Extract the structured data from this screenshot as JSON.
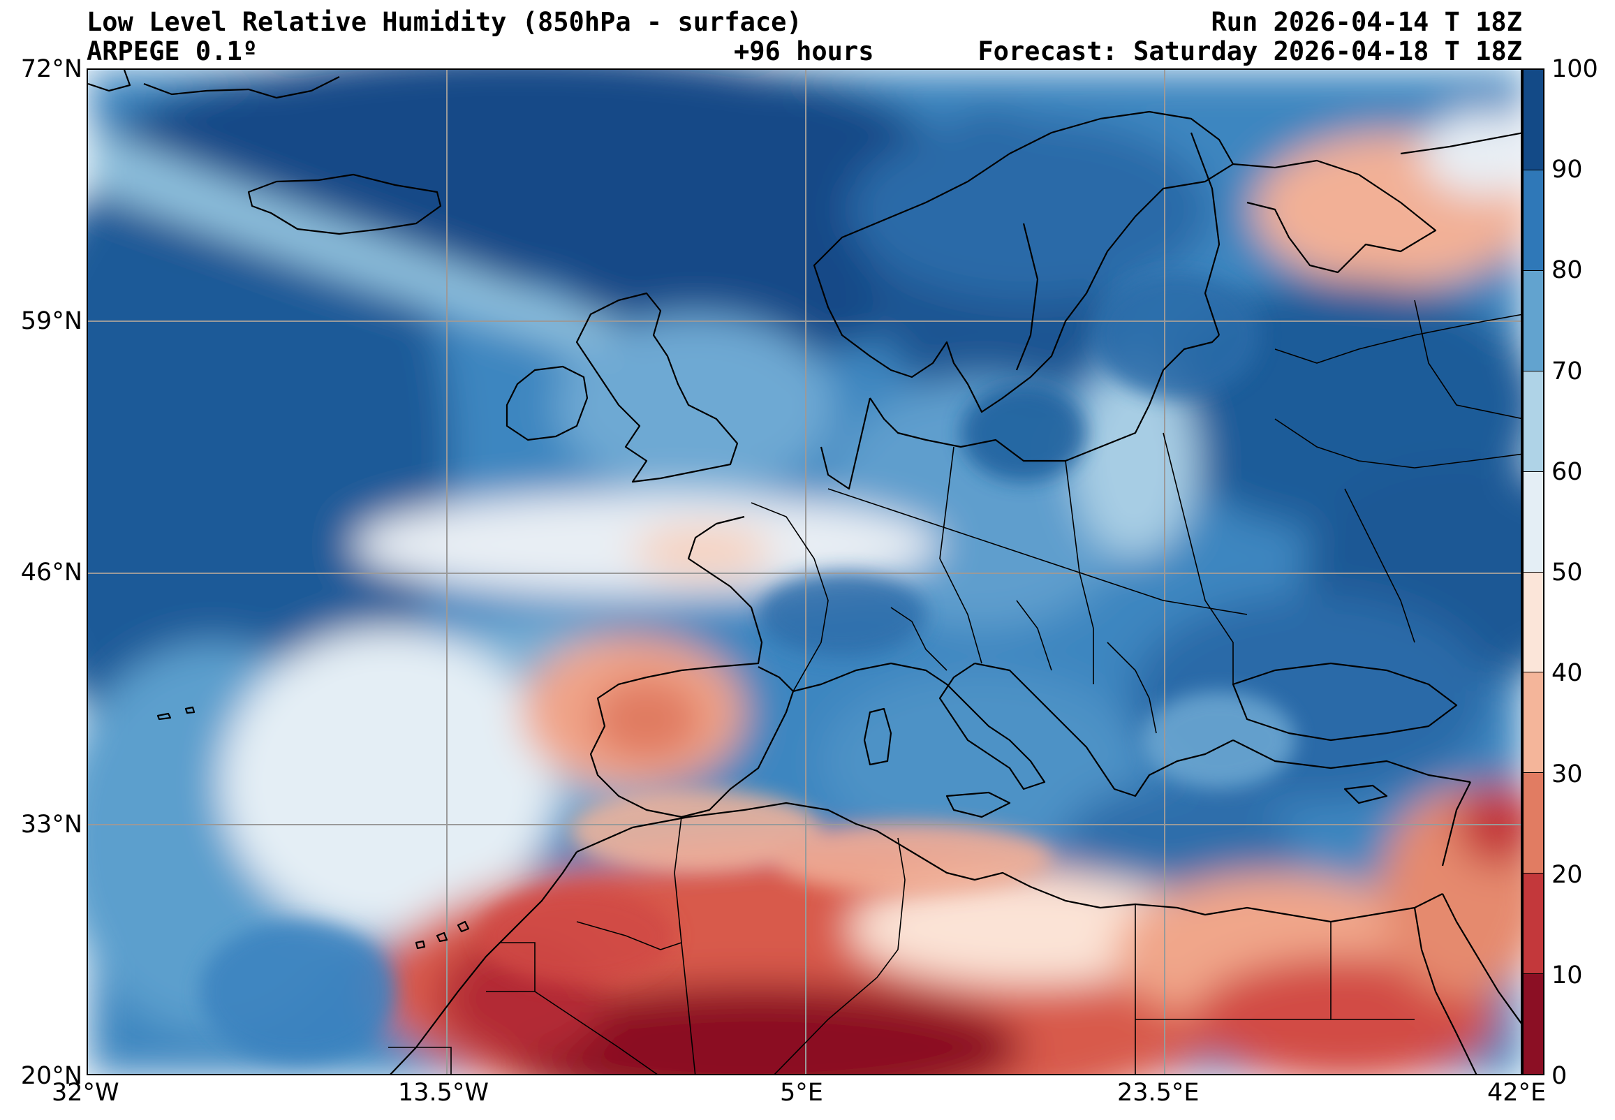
{
  "header": {
    "title": "Low Level Relative Humidity (850hPa - surface)",
    "model": "ARPEGE 0.1º",
    "lead_time": "+96 hours",
    "run": "Run 2026-04-14 T 18Z",
    "forecast": "Forecast: Saturday 2026-04-18 T 18Z"
  },
  "map": {
    "lat_labels": [
      "72°N",
      "59°N",
      "46°N",
      "33°N",
      "20°N"
    ],
    "lon_labels": [
      "32°W",
      "13.5°W",
      "5°E",
      "23.5°E",
      "42°E"
    ],
    "region": "Europe, North Atlantic and North Africa",
    "lon_range": [
      -32,
      42
    ],
    "lat_range": [
      20,
      72
    ]
  },
  "colorbar": {
    "ticks": [
      "100",
      "90",
      "80",
      "70",
      "60",
      "50",
      "40",
      "30",
      "20",
      "10",
      "0"
    ],
    "levels": [
      100,
      90,
      80,
      70,
      60,
      50,
      40,
      30,
      20,
      10,
      0
    ],
    "colors": [
      "#134a87",
      "#2f78b8",
      "#62a3cf",
      "#afd3e7",
      "#e4eef5",
      "#fbe5d9",
      "#f4b59a",
      "#e17c62",
      "#c3383b",
      "#8b0f24"
    ]
  },
  "colors": {
    "land_outline": "#000000",
    "grid": "#9a9a9a"
  }
}
